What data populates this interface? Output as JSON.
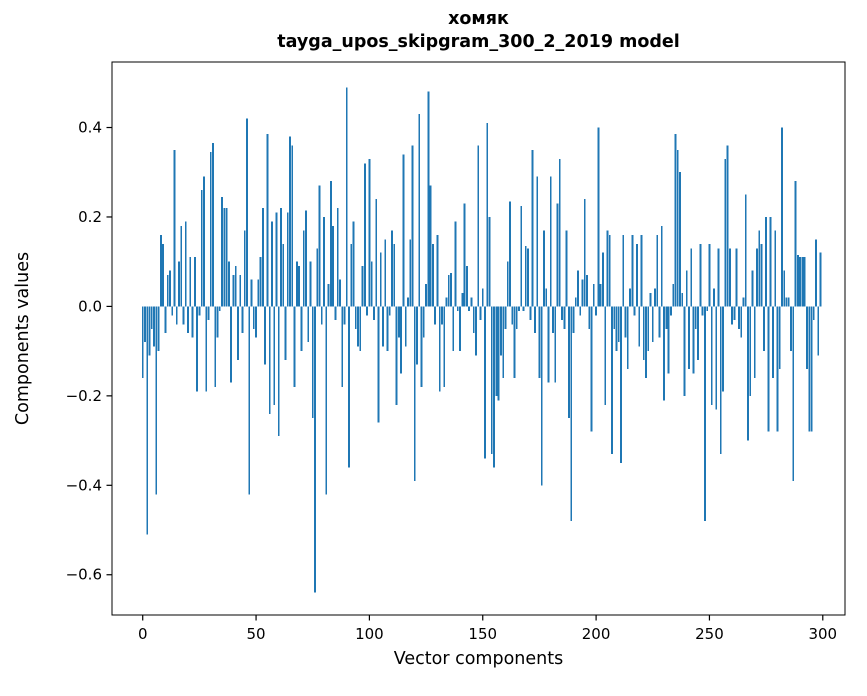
{
  "chart_data": {
    "type": "bar",
    "title_line1": "хомяк",
    "title_line2": "tayga_upos_skipgram_300_2_2019 model",
    "xlabel": "Vector components",
    "ylabel": "Components values",
    "bar_color": "#1f77b4",
    "background_color": "#ffffff",
    "spine_color": "#000000",
    "grid": false,
    "legend": false,
    "n_components": 300,
    "x_ticks": [
      0,
      50,
      100,
      150,
      200,
      250,
      300
    ],
    "y_ticks": [
      0.4,
      0.2,
      0.0,
      -0.2,
      -0.4,
      -0.6
    ],
    "y_tick_labels": [
      "0.4",
      "0.2",
      "0.0",
      "−0.2",
      "−0.4",
      "−0.6"
    ],
    "xlim": [
      -13.55,
      309.8
    ],
    "ylim": [
      -0.69,
      0.5465
    ],
    "bar_width": 0.8,
    "values": [
      -0.16,
      -0.08,
      -0.51,
      -0.11,
      -0.05,
      -0.09,
      -0.42,
      -0.1,
      0.16,
      0.14,
      -0.06,
      0.07,
      0.08,
      -0.02,
      0.35,
      -0.04,
      0.1,
      0.18,
      -0.04,
      0.19,
      -0.06,
      0.11,
      -0.07,
      0.11,
      -0.19,
      -0.02,
      0.26,
      0.29,
      -0.19,
      -0.03,
      0.345,
      0.365,
      -0.18,
      -0.07,
      -0.01,
      0.245,
      0.22,
      0.22,
      0.1,
      -0.17,
      0.07,
      0.09,
      -0.12,
      0.07,
      -0.06,
      0.17,
      0.42,
      -0.42,
      0.06,
      -0.05,
      -0.07,
      0.06,
      0.11,
      0.22,
      -0.13,
      0.385,
      -0.24,
      0.19,
      -0.22,
      0.21,
      -0.29,
      0.22,
      0.14,
      -0.12,
      0.21,
      0.38,
      0.36,
      -0.18,
      0.1,
      0.09,
      -0.1,
      0.17,
      0.215,
      -0.08,
      0.1,
      -0.25,
      -0.64,
      0.13,
      0.27,
      -0.04,
      0.2,
      -0.42,
      0.05,
      0.28,
      0.18,
      -0.03,
      0.22,
      0.06,
      -0.18,
      -0.04,
      0.49,
      -0.36,
      0.14,
      0.19,
      -0.05,
      -0.09,
      -0.1,
      0.09,
      0.32,
      -0.02,
      0.33,
      0.1,
      -0.03,
      0.24,
      -0.26,
      0.12,
      -0.09,
      0.15,
      -0.1,
      -0.02,
      0.17,
      0.14,
      -0.22,
      -0.07,
      -0.15,
      0.34,
      -0.09,
      0.02,
      0.15,
      0.36,
      -0.39,
      -0.13,
      0.43,
      -0.18,
      -0.07,
      0.05,
      0.48,
      0.27,
      0.14,
      -0.04,
      0.16,
      -0.19,
      -0.04,
      -0.18,
      0.02,
      0.07,
      0.075,
      -0.1,
      0.19,
      -0.01,
      -0.1,
      0.03,
      0.23,
      0.09,
      -0.01,
      0.02,
      -0.06,
      -0.11,
      0.36,
      -0.03,
      0.04,
      -0.34,
      0.41,
      0.2,
      -0.33,
      -0.36,
      -0.2,
      -0.21,
      -0.11,
      -0.16,
      -0.05,
      0.1,
      0.235,
      -0.04,
      -0.16,
      -0.05,
      -0.01,
      0.225,
      -0.01,
      0.135,
      0.13,
      -0.03,
      0.35,
      -0.06,
      0.29,
      -0.16,
      -0.4,
      0.17,
      0.04,
      -0.17,
      0.29,
      -0.06,
      -0.17,
      0.23,
      0.33,
      -0.03,
      -0.05,
      0.17,
      -0.25,
      -0.48,
      -0.06,
      0.02,
      0.08,
      -0.02,
      0.06,
      0.24,
      0.07,
      -0.05,
      -0.28,
      0.05,
      -0.02,
      0.4,
      0.05,
      0.12,
      -0.22,
      0.17,
      0.16,
      -0.33,
      -0.05,
      -0.1,
      -0.08,
      -0.35,
      0.16,
      -0.07,
      -0.14,
      0.04,
      0.16,
      -0.02,
      0.14,
      -0.09,
      0.16,
      -0.12,
      -0.16,
      -0.1,
      0.03,
      -0.08,
      0.04,
      0.16,
      -0.07,
      0.18,
      -0.21,
      -0.05,
      -0.15,
      -0.02,
      0.05,
      0.385,
      0.35,
      0.3,
      0.03,
      -0.2,
      0.08,
      -0.14,
      0.13,
      -0.15,
      -0.05,
      -0.12,
      0.14,
      -0.02,
      -0.48,
      -0.01,
      0.14,
      -0.22,
      0.04,
      -0.23,
      0.13,
      -0.33,
      -0.19,
      0.33,
      0.36,
      0.13,
      -0.04,
      -0.03,
      0.13,
      -0.05,
      -0.07,
      0.02,
      0.25,
      -0.3,
      -0.2,
      0.08,
      -0.16,
      0.13,
      0.17,
      0.14,
      -0.1,
      0.2,
      -0.28,
      0.2,
      -0.16,
      0.17,
      -0.28,
      -0.14,
      0.4,
      0.08,
      0.02,
      0.02,
      -0.1,
      -0.39,
      0.28,
      0.115,
      0.11,
      0.11,
      0.11,
      -0.14,
      -0.28,
      -0.28,
      -0.03,
      0.15,
      -0.11,
      0.12
    ]
  }
}
